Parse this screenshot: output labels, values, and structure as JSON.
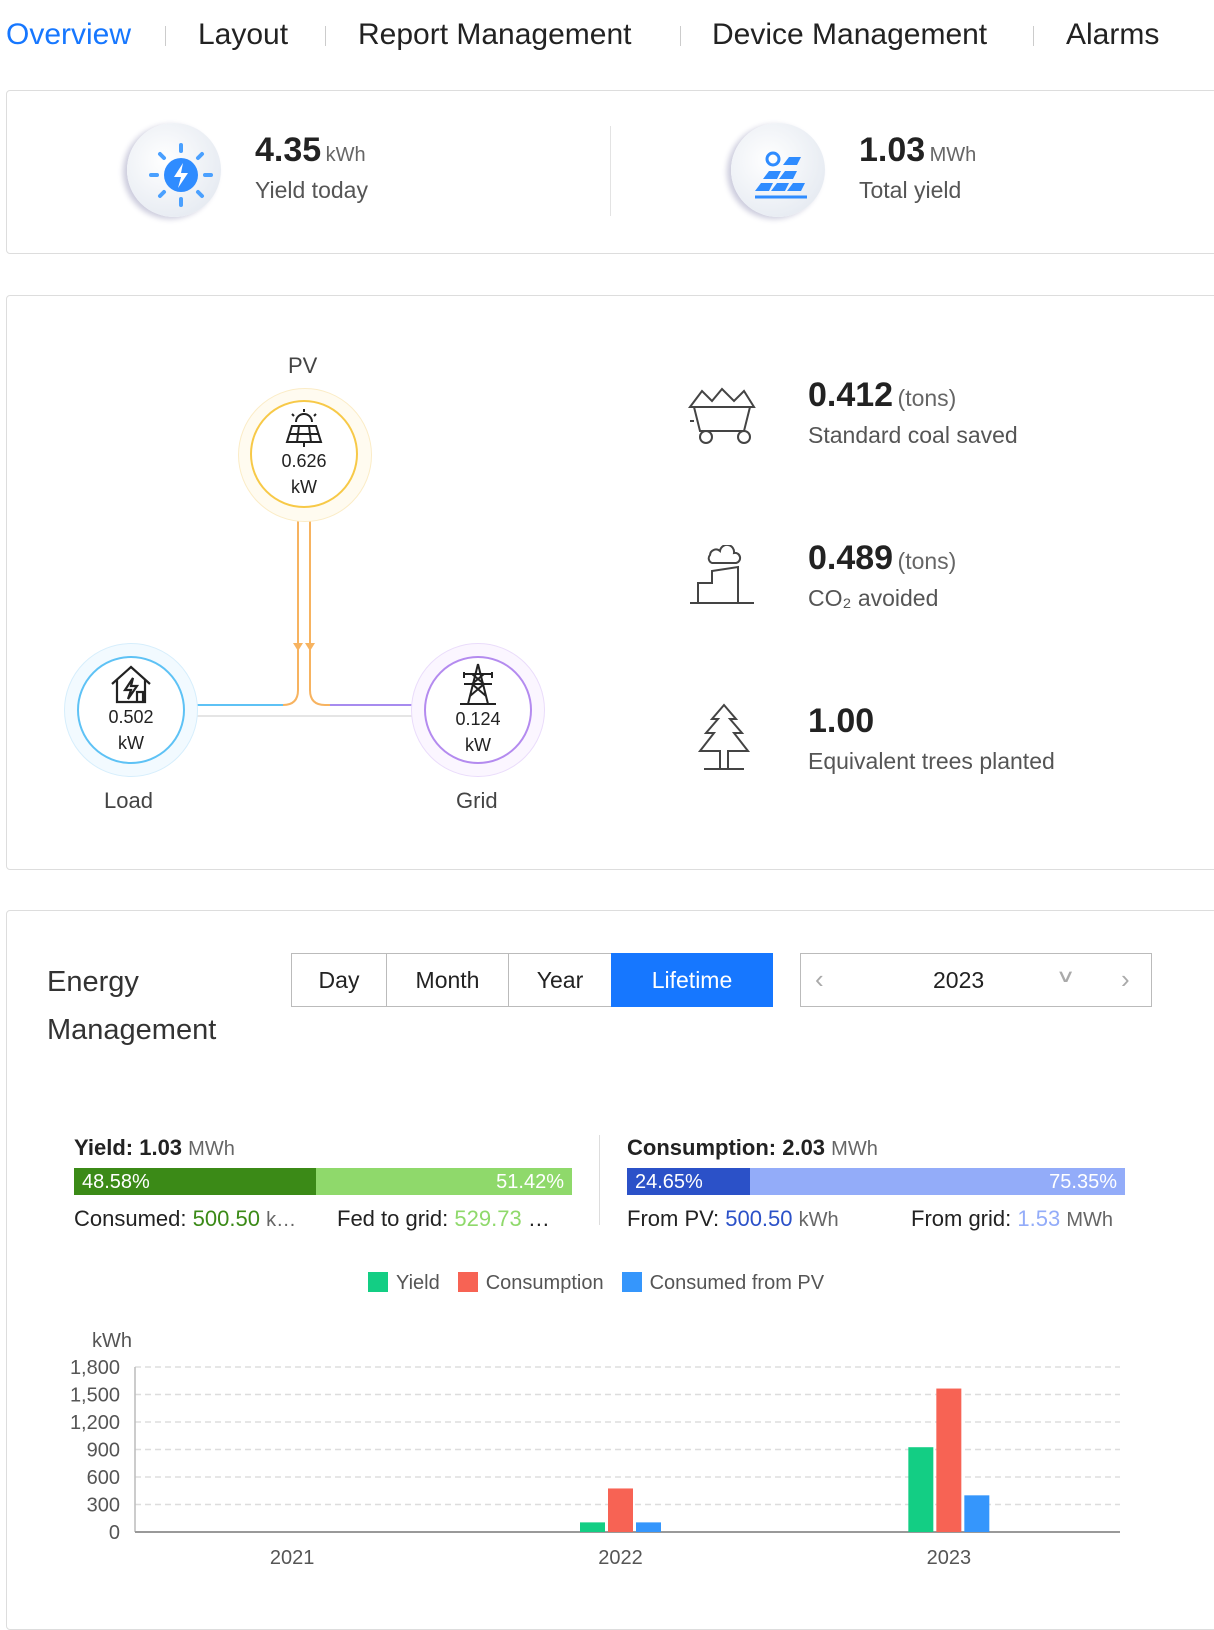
{
  "nav": {
    "tabs": [
      {
        "label": "Overview",
        "active": true
      },
      {
        "label": "Layout"
      },
      {
        "label": "Report Management"
      },
      {
        "label": "Device Management"
      },
      {
        "label": "Alarms"
      }
    ],
    "accent": "#1677ff"
  },
  "summary": {
    "yield_today": {
      "value": "4.35",
      "unit": "kWh",
      "label": "Yield today",
      "icon": "sun-lightning-icon"
    },
    "total_yield": {
      "value": "1.03",
      "unit": "MWh",
      "label": "Total yield",
      "icon": "solar-panel-icon"
    }
  },
  "flow": {
    "pv": {
      "label": "PV",
      "value": "0.626",
      "unit": "kW"
    },
    "load": {
      "label": "Load",
      "value": "0.502",
      "unit": "kW"
    },
    "grid": {
      "label": "Grid",
      "value": "0.124",
      "unit": "kW"
    }
  },
  "env": [
    {
      "value": "0.412",
      "unit": "(tons)",
      "label": "Standard coal saved",
      "icon": "coal-cart-icon"
    },
    {
      "value": "0.489",
      "unit": "(tons)",
      "label": "CO₂ avoided",
      "icon": "factory-icon"
    },
    {
      "value": "1.00",
      "unit": "",
      "label": "Equivalent trees planted",
      "icon": "tree-icon"
    }
  ],
  "energy": {
    "title_line1": "Energy",
    "title_line2": "Management",
    "periods": [
      "Day",
      "Month",
      "Year",
      "Lifetime"
    ],
    "active_period": "Lifetime",
    "year": "2023",
    "yield": {
      "label": "Yield:",
      "value": "1.03",
      "unit": "MWh",
      "consumed_pct": 48.58,
      "consumed_pct_label": "48.58%",
      "fed_pct_label": "51.42%",
      "consumed_label": "Consumed:",
      "consumed_value": "500.50",
      "consumed_unit": "k…",
      "fed_label": "Fed to grid:",
      "fed_value": "529.73",
      "fed_unit": "…"
    },
    "consumption": {
      "label": "Consumption:",
      "value": "2.03",
      "unit": "MWh",
      "pv_pct": 24.65,
      "pv_pct_label": "24.65%",
      "grid_pct_label": "75.35%",
      "pv_label": "From PV:",
      "pv_value": "500.50",
      "pv_unit": "kWh",
      "grid_label": "From grid:",
      "grid_value": "1.53",
      "grid_unit": "MWh"
    }
  },
  "chart_data": {
    "type": "bar",
    "ylabel": "kWh",
    "categories": [
      "2021",
      "2022",
      "2023"
    ],
    "yticks": [
      "0",
      "300",
      "600",
      "900",
      "1,200",
      "1,500",
      "1,800"
    ],
    "ylim": [
      0,
      1800
    ],
    "grid": true,
    "legend_position": "top",
    "series": [
      {
        "name": "Yield",
        "color": "#13ce84",
        "values": [
          0,
          105,
          925
        ]
      },
      {
        "name": "Consumption",
        "color": "#f76354",
        "values": [
          0,
          475,
          1565
        ]
      },
      {
        "name": "Consumed from PV",
        "color": "#3596fc",
        "values": [
          0,
          105,
          400
        ]
      }
    ]
  }
}
